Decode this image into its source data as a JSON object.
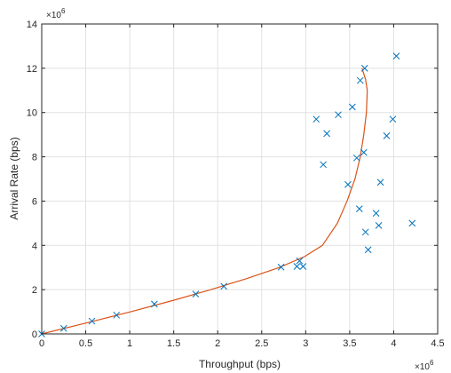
{
  "chart_data": {
    "type": "scatter",
    "title": "",
    "xlabel": "Throughput (bps)",
    "ylabel": "Arrival Rate (bps)",
    "x_exponent": "×10",
    "x_exponent_power": "6",
    "y_exponent": "×10",
    "y_exponent_power": "6",
    "xlim": [
      0,
      4.5
    ],
    "ylim": [
      0,
      14
    ],
    "x_ticks": [
      0,
      0.5,
      1,
      1.5,
      2,
      2.5,
      3,
      3.5,
      4,
      4.5
    ],
    "x_tick_labels": [
      "0",
      "0.5",
      "1",
      "1.5",
      "2",
      "2.5",
      "3",
      "3.5",
      "4",
      "4.5"
    ],
    "y_ticks": [
      0,
      2,
      4,
      6,
      8,
      10,
      12,
      14
    ],
    "y_tick_labels": [
      "0",
      "2",
      "4",
      "6",
      "8",
      "10",
      "12",
      "14"
    ],
    "grid": true,
    "series": [
      {
        "kind": "scatter-x-markers",
        "color": "#0072bd",
        "points": [
          {
            "x": 0.0,
            "y": 0.0
          },
          {
            "x": 0.25,
            "y": 0.25
          },
          {
            "x": 0.57,
            "y": 0.58
          },
          {
            "x": 0.85,
            "y": 0.85
          },
          {
            "x": 1.28,
            "y": 1.35
          },
          {
            "x": 1.75,
            "y": 1.8
          },
          {
            "x": 2.07,
            "y": 2.15
          },
          {
            "x": 2.72,
            "y": 3.02
          },
          {
            "x": 2.9,
            "y": 3.05
          },
          {
            "x": 2.93,
            "y": 3.3
          },
          {
            "x": 2.97,
            "y": 3.05
          },
          {
            "x": 3.12,
            "y": 9.7
          },
          {
            "x": 3.2,
            "y": 7.65
          },
          {
            "x": 3.24,
            "y": 9.05
          },
          {
            "x": 3.37,
            "y": 9.9
          },
          {
            "x": 3.48,
            "y": 6.75
          },
          {
            "x": 3.53,
            "y": 10.25
          },
          {
            "x": 3.58,
            "y": 7.95
          },
          {
            "x": 3.61,
            "y": 5.65
          },
          {
            "x": 3.62,
            "y": 11.45
          },
          {
            "x": 3.66,
            "y": 8.2
          },
          {
            "x": 3.67,
            "y": 12.0
          },
          {
            "x": 3.68,
            "y": 4.6
          },
          {
            "x": 3.71,
            "y": 3.8
          },
          {
            "x": 3.8,
            "y": 5.45
          },
          {
            "x": 3.83,
            "y": 4.9
          },
          {
            "x": 3.85,
            "y": 6.85
          },
          {
            "x": 3.92,
            "y": 8.95
          },
          {
            "x": 3.99,
            "y": 9.7
          },
          {
            "x": 4.03,
            "y": 12.55
          },
          {
            "x": 4.21,
            "y": 5.0
          }
        ]
      },
      {
        "kind": "fitted-curve",
        "color": "#d95319",
        "points": [
          {
            "x": 0.0,
            "y": 0.0
          },
          {
            "x": 0.51,
            "y": 0.5
          },
          {
            "x": 1.01,
            "y": 1.0
          },
          {
            "x": 1.48,
            "y": 1.5
          },
          {
            "x": 1.92,
            "y": 2.0
          },
          {
            "x": 2.33,
            "y": 2.5
          },
          {
            "x": 2.7,
            "y": 3.0
          },
          {
            "x": 2.99,
            "y": 3.5
          },
          {
            "x": 3.19,
            "y": 4.0
          },
          {
            "x": 3.36,
            "y": 5.0
          },
          {
            "x": 3.47,
            "y": 6.0
          },
          {
            "x": 3.56,
            "y": 7.0
          },
          {
            "x": 3.62,
            "y": 8.0
          },
          {
            "x": 3.66,
            "y": 9.0
          },
          {
            "x": 3.69,
            "y": 10.0
          },
          {
            "x": 3.7,
            "y": 11.0
          },
          {
            "x": 3.68,
            "y": 11.5
          },
          {
            "x": 3.64,
            "y": 12.0
          }
        ]
      }
    ]
  }
}
